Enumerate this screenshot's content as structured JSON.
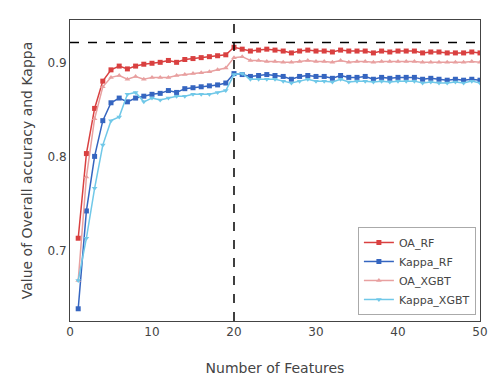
{
  "chart_data": {
    "type": "line",
    "xlabel": "Number of Features",
    "ylabel": "Value of Overall accuracy and Kappa",
    "x": [
      1,
      2,
      3,
      4,
      5,
      6,
      7,
      8,
      9,
      10,
      11,
      12,
      13,
      14,
      15,
      16,
      17,
      18,
      19,
      20,
      21,
      22,
      23,
      24,
      25,
      26,
      27,
      28,
      29,
      30,
      31,
      32,
      33,
      34,
      35,
      36,
      37,
      38,
      39,
      40,
      41,
      42,
      43,
      44,
      45,
      46,
      47,
      48,
      49,
      50
    ],
    "series": [
      {
        "name": "OA_RF",
        "color": "#d94040",
        "marker": "square",
        "values": [
          0.713,
          0.803,
          0.851,
          0.88,
          0.892,
          0.896,
          0.893,
          0.896,
          0.898,
          0.899,
          0.9,
          0.902,
          0.9,
          0.903,
          0.904,
          0.905,
          0.906,
          0.907,
          0.908,
          0.916,
          0.914,
          0.912,
          0.913,
          0.914,
          0.913,
          0.912,
          0.91,
          0.912,
          0.913,
          0.912,
          0.912,
          0.911,
          0.913,
          0.912,
          0.912,
          0.912,
          0.91,
          0.912,
          0.911,
          0.912,
          0.912,
          0.912,
          0.91,
          0.911,
          0.911,
          0.91,
          0.91,
          0.91,
          0.911,
          0.91
        ]
      },
      {
        "name": "Kappa_RF",
        "color": "#3565c0",
        "marker": "square",
        "values": [
          0.638,
          0.742,
          0.8,
          0.838,
          0.857,
          0.862,
          0.858,
          0.862,
          0.864,
          0.866,
          0.867,
          0.87,
          0.868,
          0.872,
          0.873,
          0.874,
          0.875,
          0.876,
          0.878,
          0.888,
          0.887,
          0.885,
          0.886,
          0.887,
          0.886,
          0.885,
          0.882,
          0.885,
          0.886,
          0.885,
          0.885,
          0.883,
          0.886,
          0.884,
          0.884,
          0.885,
          0.882,
          0.884,
          0.883,
          0.884,
          0.884,
          0.884,
          0.882,
          0.883,
          0.882,
          0.881,
          0.882,
          0.881,
          0.882,
          0.881
        ]
      },
      {
        "name": "OA_XGBT",
        "color": "#e8a0a0",
        "marker": "triangle-up",
        "values": [
          0.668,
          0.778,
          0.84,
          0.874,
          0.884,
          0.886,
          0.882,
          0.885,
          0.882,
          0.884,
          0.884,
          0.884,
          0.886,
          0.887,
          0.888,
          0.889,
          0.89,
          0.892,
          0.894,
          0.905,
          0.906,
          0.902,
          0.902,
          0.901,
          0.901,
          0.9,
          0.9,
          0.901,
          0.902,
          0.901,
          0.901,
          0.9,
          0.902,
          0.9,
          0.901,
          0.901,
          0.9,
          0.901,
          0.901,
          0.901,
          0.901,
          0.901,
          0.9,
          0.9,
          0.9,
          0.9,
          0.9,
          0.9,
          0.901,
          0.9
        ]
      },
      {
        "name": "Kappa_XGBT",
        "color": "#70c8e8",
        "marker": "triangle-down",
        "values": [
          0.668,
          0.713,
          0.766,
          0.812,
          0.838,
          0.842,
          0.866,
          0.868,
          0.858,
          0.862,
          0.86,
          0.862,
          0.864,
          0.864,
          0.866,
          0.866,
          0.866,
          0.868,
          0.87,
          0.887,
          0.888,
          0.882,
          0.882,
          0.882,
          0.882,
          0.88,
          0.878,
          0.88,
          0.882,
          0.88,
          0.88,
          0.879,
          0.882,
          0.879,
          0.88,
          0.88,
          0.879,
          0.88,
          0.879,
          0.88,
          0.88,
          0.88,
          0.878,
          0.879,
          0.878,
          0.878,
          0.879,
          0.878,
          0.88,
          0.878
        ]
      }
    ],
    "reference_lines": [
      {
        "axis": "y",
        "value": 0.921,
        "color": "#000000",
        "line_style": "dashed"
      },
      {
        "axis": "x",
        "value": 20,
        "color": "#000000",
        "line_style": "dashed"
      }
    ],
    "xlim": [
      0,
      50
    ],
    "xticks": [
      0,
      10,
      20,
      30,
      40,
      50
    ],
    "ylim": [
      0.625,
      0.945
    ],
    "yticks": [
      0.7,
      0.8,
      0.9
    ],
    "grid": false,
    "legend": "lower right"
  }
}
